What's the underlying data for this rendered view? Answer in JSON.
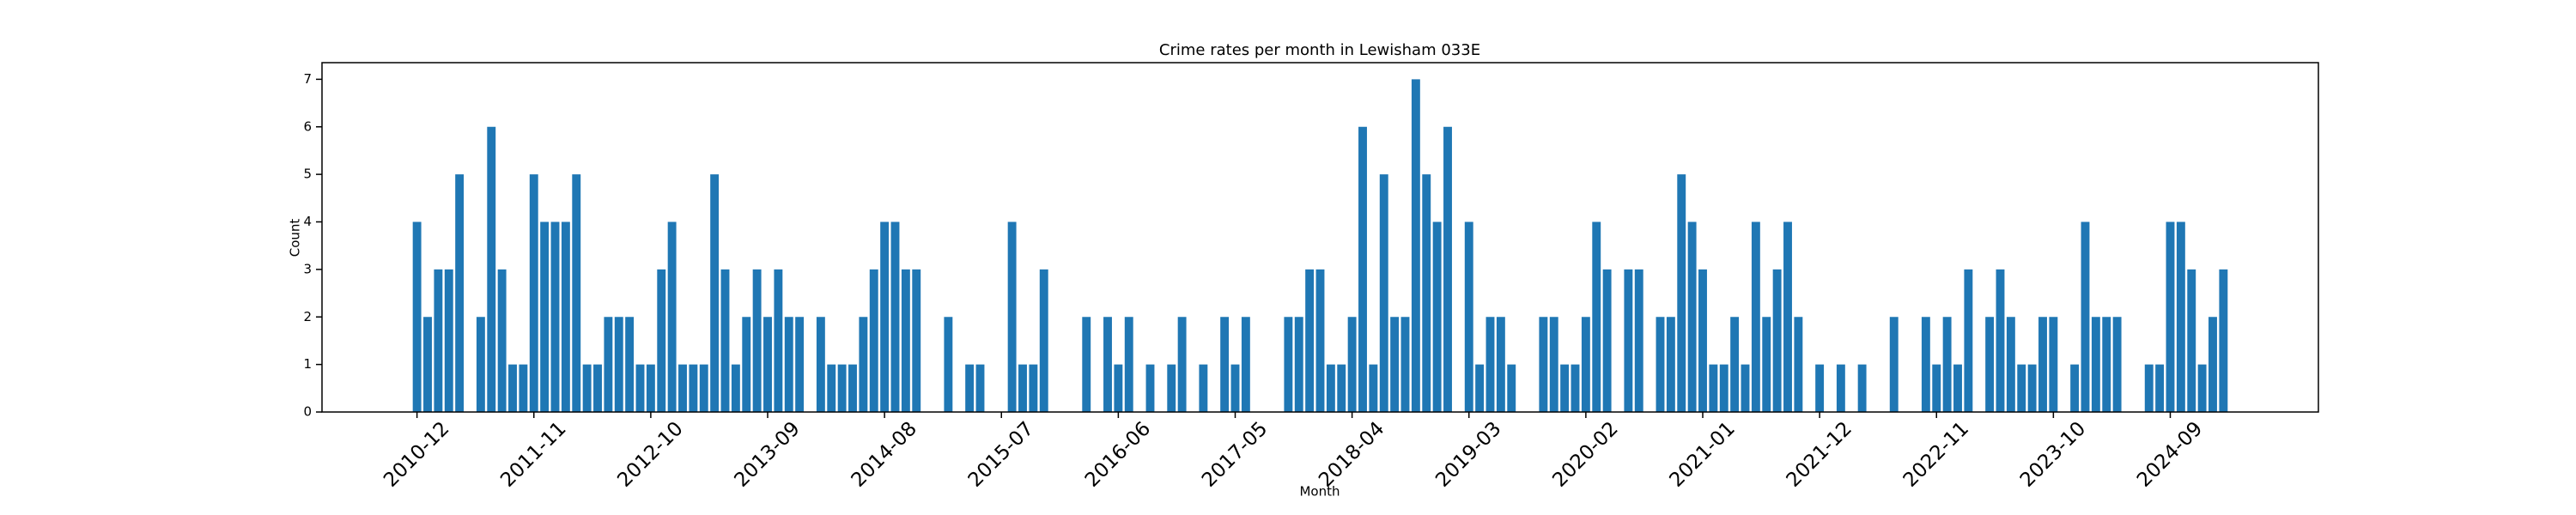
{
  "chart_data": {
    "type": "bar",
    "title": "Crime rates per month in Lewisham 033E",
    "x_label": "Month",
    "y_label": "Count",
    "categories": [
      "2010-12",
      null,
      null,
      null,
      null,
      null,
      null,
      null,
      null,
      null,
      null,
      "2011-11",
      null,
      null,
      null,
      null,
      null,
      null,
      null,
      null,
      null,
      null,
      "2012-10",
      null,
      null,
      null,
      null,
      null,
      null,
      null,
      null,
      null,
      null,
      "2013-09",
      null,
      null,
      null,
      null,
      null,
      null,
      null,
      null,
      null,
      null,
      "2014-08",
      null,
      null,
      null,
      null,
      null,
      null,
      null,
      null,
      null,
      null,
      "2015-07",
      null,
      null,
      null,
      null,
      null,
      null,
      null,
      null,
      null,
      null,
      "2016-06",
      null,
      null,
      null,
      null,
      null,
      null,
      null,
      null,
      null,
      null,
      "2017-05",
      null,
      null,
      null,
      null,
      null,
      null,
      null,
      null,
      null,
      null,
      "2018-04",
      null,
      null,
      null,
      null,
      null,
      null,
      null,
      null,
      null,
      null,
      "2019-03",
      null,
      null,
      null,
      null,
      null,
      null,
      null,
      null,
      null,
      null,
      "2020-02",
      null,
      null,
      null,
      null,
      null,
      null,
      null,
      null,
      null,
      null,
      "2021-01",
      null,
      null,
      null,
      null,
      null,
      null,
      null,
      null,
      null,
      null,
      "2021-12",
      null,
      null,
      null,
      null,
      null,
      null,
      null,
      null,
      null,
      null,
      "2022-11",
      null,
      null,
      null,
      null,
      null,
      null,
      null,
      null,
      null,
      null,
      "2023-10",
      null,
      null,
      null,
      null,
      null,
      null,
      null,
      null,
      null,
      null,
      "2024-09",
      null,
      null,
      null,
      null,
      null
    ],
    "values": [
      4,
      2,
      3,
      3,
      5,
      0,
      2,
      6,
      3,
      1,
      1,
      5,
      4,
      4,
      4,
      5,
      1,
      1,
      2,
      2,
      2,
      1,
      1,
      3,
      4,
      1,
      1,
      1,
      5,
      3,
      1,
      2,
      3,
      2,
      3,
      2,
      2,
      0,
      2,
      1,
      1,
      1,
      2,
      3,
      4,
      4,
      3,
      3,
      0,
      0,
      2,
      0,
      1,
      1,
      0,
      0,
      4,
      1,
      1,
      3,
      0,
      0,
      0,
      2,
      0,
      2,
      1,
      2,
      0,
      1,
      0,
      1,
      2,
      0,
      1,
      0,
      2,
      1,
      2,
      0,
      0,
      0,
      2,
      2,
      3,
      3,
      1,
      1,
      2,
      6,
      1,
      5,
      2,
      2,
      7,
      5,
      4,
      6,
      0,
      4,
      1,
      2,
      2,
      1,
      0,
      0,
      2,
      2,
      1,
      1,
      2,
      4,
      3,
      0,
      3,
      3,
      0,
      2,
      2,
      5,
      4,
      3,
      1,
      1,
      2,
      1,
      4,
      2,
      3,
      4,
      2,
      0,
      1,
      0,
      1,
      0,
      1,
      0,
      0,
      2,
      0,
      0,
      2,
      1,
      2,
      1,
      3,
      0,
      2,
      3,
      2,
      1,
      1,
      2,
      2,
      0,
      1,
      4,
      2,
      2,
      2,
      0,
      0,
      1,
      1,
      4,
      4,
      3,
      1,
      2,
      3
    ],
    "color": "#1f77b4",
    "ylim": [
      0,
      7.35
    ],
    "yticks": [
      0,
      1,
      2,
      3,
      4,
      5,
      6,
      7
    ],
    "grid": false
  }
}
